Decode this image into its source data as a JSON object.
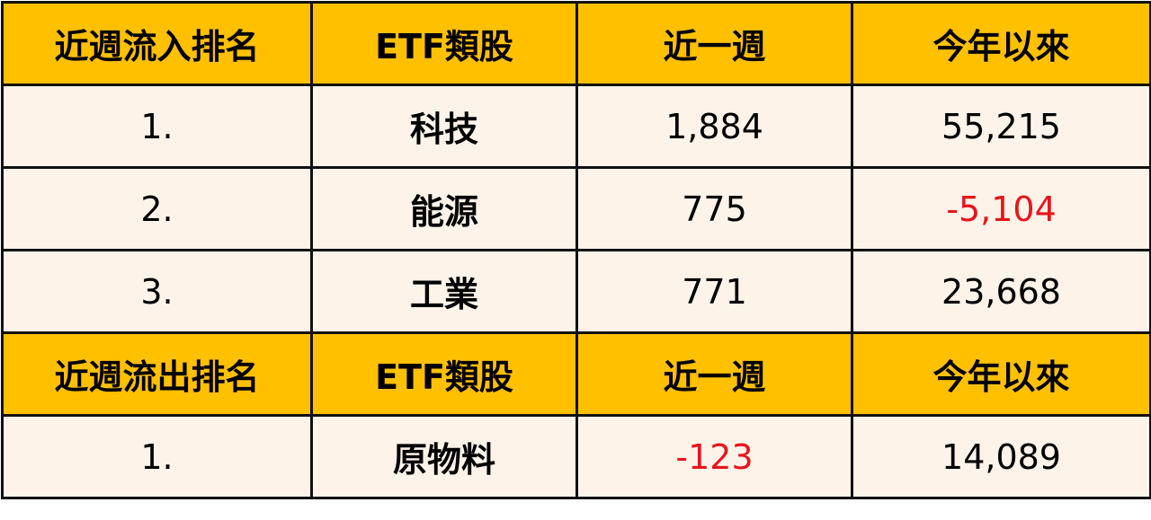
{
  "colors": {
    "header_bg": "#FFC000",
    "body_bg": "#FDF3E9",
    "negative": "#E8141B"
  },
  "inflow": {
    "headers": [
      "近週流入排名",
      "ETF類股",
      "近一週",
      "今年以來"
    ],
    "rows": [
      {
        "rank": "1.",
        "sector": "科技",
        "week": "1,884",
        "ytd": "55,215"
      },
      {
        "rank": "2.",
        "sector": "能源",
        "week": "775",
        "ytd": "-5,104"
      },
      {
        "rank": "3.",
        "sector": "工業",
        "week": "771",
        "ytd": "23,668"
      }
    ]
  },
  "outflow": {
    "headers": [
      "近週流出排名",
      "ETF類股",
      "近一週",
      "今年以來"
    ],
    "rows": [
      {
        "rank": "1.",
        "sector": "原物料",
        "week": "-123",
        "ytd": "14,089"
      }
    ]
  }
}
